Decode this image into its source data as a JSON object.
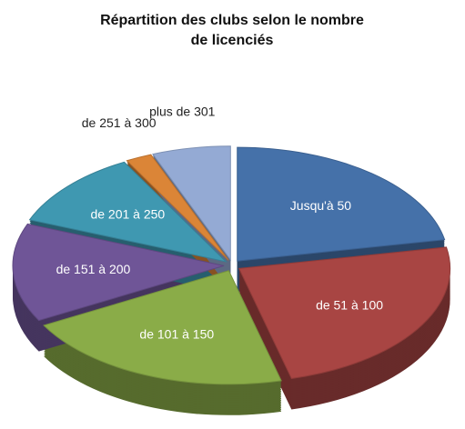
{
  "chart_data": {
    "type": "pie3d",
    "title": "Répartition des clubs selon le nombre de licenciés",
    "categories": [
      "Jusqu'à 50",
      "de 51 à 100",
      "de 101 à 150",
      "de 151 à 200",
      "de 201 à 250",
      "de 251 à 300",
      "plus de 301"
    ],
    "values": [
      22,
      24,
      21,
      14,
      11,
      2,
      6
    ],
    "colors": [
      "#4571a9",
      "#a84543",
      "#8aac48",
      "#6f5597",
      "#3f98b1",
      "#db8537",
      "#94aad4"
    ]
  }
}
